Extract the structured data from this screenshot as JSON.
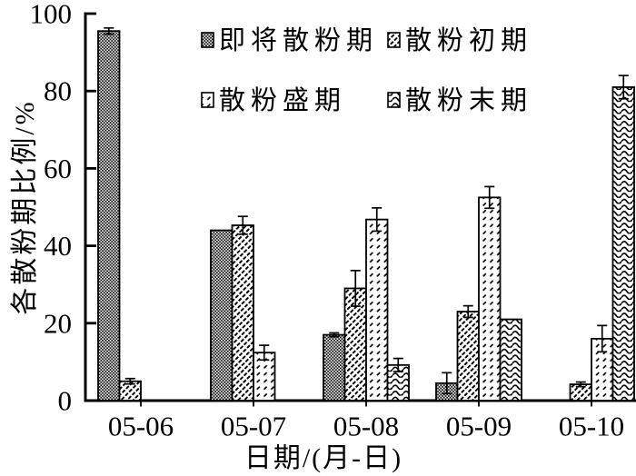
{
  "figure": {
    "background": "#ffffff",
    "foreground": "#000000"
  },
  "chart_data": {
    "type": "bar",
    "title": "",
    "xlabel": "日期/(月-日)",
    "ylabel": "各散粉期比例/%",
    "ylim": [
      0,
      100
    ],
    "yticks": [
      0,
      20,
      40,
      60,
      80,
      100
    ],
    "categories": [
      "05-06",
      "05-07",
      "05-08",
      "05-09",
      "05-10"
    ],
    "series": [
      {
        "name": "即将散粉期",
        "pattern": "checker",
        "values": [
          95.5,
          44,
          17,
          4.5,
          0
        ],
        "errors": [
          0.8,
          0,
          0.5,
          2.7,
          0
        ]
      },
      {
        "name": "散粉初期",
        "pattern": "dense-diagonal",
        "values": [
          5,
          45.3,
          29,
          23,
          4.2
        ],
        "errors": [
          0.7,
          2.3,
          4.6,
          1.5,
          0.6
        ]
      },
      {
        "name": "散粉盛期",
        "pattern": "sparse-diagonal",
        "values": [
          0,
          12.4,
          46.8,
          52.5,
          16
        ],
        "errors": [
          0,
          1.9,
          3,
          2.8,
          3.4
        ]
      },
      {
        "name": "散粉末期",
        "pattern": "wave",
        "values": [
          0,
          0,
          9.2,
          21,
          81
        ],
        "errors": [
          0,
          0,
          1.7,
          0,
          3
        ]
      }
    ],
    "legend_position": "inside-top",
    "grid": false,
    "error_bars": true
  }
}
